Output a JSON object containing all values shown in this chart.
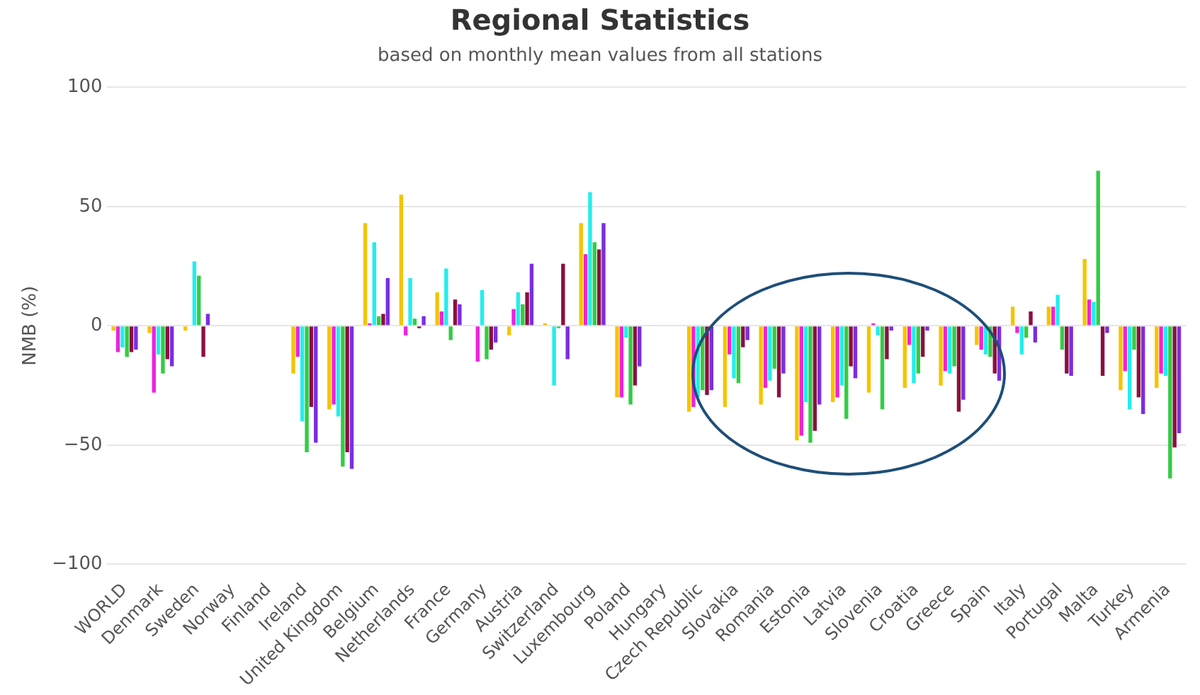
{
  "chart_data": {
    "type": "bar",
    "title": "Regional Statistics",
    "subtitle": "based on monthly mean values from all stations",
    "ylabel": "NMB (%)",
    "categories": [
      "WORLD",
      "Denmark",
      "Sweden",
      "Norway",
      "Finland",
      "Ireland",
      "United Kingdom",
      "Belgium",
      "Netherlands",
      "France",
      "Germany",
      "Austria",
      "Switzerland",
      "Luxembourg",
      "Poland",
      "Hungary",
      "Czech Republic",
      "Slovakia",
      "Romania",
      "Estonia",
      "Latvia",
      "Slovenia",
      "Croatia",
      "Greece",
      "Spain",
      "Italy",
      "Portugal",
      "Malta",
      "Turkey",
      "Armenia"
    ],
    "series": [
      {
        "color": "#f5c400",
        "values": [
          -2,
          -3,
          -2,
          null,
          null,
          -20,
          -35,
          43,
          55,
          14,
          0,
          -4,
          1,
          43,
          -30,
          null,
          -36,
          -34,
          -33,
          -48,
          -32,
          -28,
          -26,
          -25,
          -8,
          8,
          8,
          28,
          -27,
          -26
        ]
      },
      {
        "color": "#ee22dd",
        "values": [
          -11,
          -28,
          0,
          null,
          null,
          -13,
          -33,
          1,
          -4,
          6,
          -15,
          7,
          0,
          30,
          -30,
          null,
          -34,
          -12,
          -26,
          -46,
          -30,
          1,
          -8,
          -19,
          -10,
          -3,
          8,
          11,
          -19,
          -20
        ]
      },
      {
        "color": "#22eeee",
        "values": [
          -9,
          -12,
          27,
          null,
          null,
          -40,
          -38,
          35,
          20,
          24,
          15,
          14,
          -25,
          56,
          -5,
          null,
          -30,
          -22,
          -23,
          -32,
          -25,
          -4,
          -24,
          -20,
          -12,
          -12,
          13,
          10,
          -35,
          -21
        ]
      },
      {
        "color": "#33cc44",
        "values": [
          -13,
          -20,
          21,
          null,
          null,
          -53,
          -59,
          4,
          3,
          -6,
          -14,
          9,
          -1,
          35,
          -33,
          null,
          -27,
          -24,
          -18,
          -49,
          -39,
          -35,
          -20,
          -17,
          -13,
          -5,
          -10,
          65,
          -10,
          -64
        ]
      },
      {
        "color": "#8b1040",
        "values": [
          -11,
          -14,
          -13,
          null,
          null,
          -34,
          -53,
          5,
          -1,
          11,
          -10,
          14,
          26,
          32,
          -25,
          null,
          -29,
          -9,
          -30,
          -44,
          -17,
          -14,
          -13,
          -36,
          -20,
          6,
          -20,
          -21,
          -30,
          -51
        ]
      },
      {
        "color": "#7a2ee0",
        "values": [
          -10,
          -17,
          5,
          null,
          null,
          -49,
          -60,
          20,
          4,
          9,
          -7,
          26,
          -14,
          43,
          -17,
          null,
          -27,
          -6,
          -20,
          -33,
          -22,
          -2,
          -2,
          -31,
          -23,
          -7,
          -21,
          -3,
          -37,
          -45
        ]
      }
    ],
    "ylim": [
      -100,
      100
    ],
    "yticks": [
      -100,
      -50,
      0,
      50,
      100
    ],
    "grid": "y",
    "legend": false
  }
}
